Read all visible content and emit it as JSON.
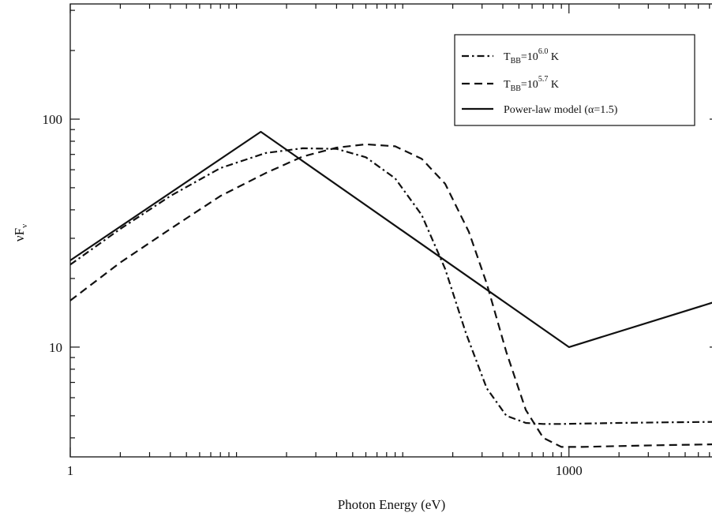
{
  "chart_data": {
    "type": "line",
    "xlabel": "Photon Energy (eV)",
    "ylabel": "νF",
    "ylabel_sub": "ν",
    "xscale": "log",
    "yscale": "log",
    "xlim": [
      1,
      8000
    ],
    "ylim": [
      3.3,
      320
    ],
    "x_tick_labels": [
      {
        "value": 1,
        "label": "1"
      },
      {
        "value": 1000,
        "label": "1000"
      }
    ],
    "y_tick_labels": [
      {
        "value": 10,
        "label": "10"
      },
      {
        "value": 100,
        "label": "100"
      }
    ],
    "grid": false,
    "legend_position": "top-right",
    "series": [
      {
        "id": "bb60",
        "legend_base": "T",
        "legend_sub": "BB",
        "legend_eq": "=10",
        "legend_sup": "6.0",
        "legend_unit": " K",
        "style": "dashdot",
        "x": [
          1,
          2,
          4,
          8,
          15,
          25,
          40,
          60,
          90,
          130,
          180,
          240,
          320,
          420,
          550,
          700,
          900,
          1200,
          2000,
          4000,
          8000
        ],
        "y": [
          23,
          33,
          46,
          61,
          71,
          74.5,
          74,
          68,
          55,
          38,
          22,
          11.5,
          6.6,
          5.0,
          4.65,
          4.6,
          4.6,
          4.62,
          4.65,
          4.68,
          4.7
        ]
      },
      {
        "id": "bb57",
        "legend_base": "T",
        "legend_sub": "BB",
        "legend_eq": "=10",
        "legend_sup": "5.7",
        "legend_unit": " K",
        "style": "dashed",
        "x": [
          1,
          2,
          4,
          8,
          15,
          25,
          40,
          60,
          90,
          130,
          180,
          250,
          320,
          420,
          550,
          700,
          900,
          1200,
          2000,
          4000,
          8000
        ],
        "y": [
          16,
          23.5,
          33,
          46,
          58,
          68.5,
          75,
          77.5,
          76,
          67,
          52,
          32,
          19,
          9.5,
          5.3,
          4.0,
          3.65,
          3.65,
          3.68,
          3.72,
          3.75
        ]
      },
      {
        "id": "pl",
        "legend_label": "Power-law model (α=1.5)",
        "style": "solid",
        "x": [
          1,
          14,
          1000,
          8000
        ],
        "y": [
          24,
          88,
          10,
          16
        ]
      }
    ]
  }
}
